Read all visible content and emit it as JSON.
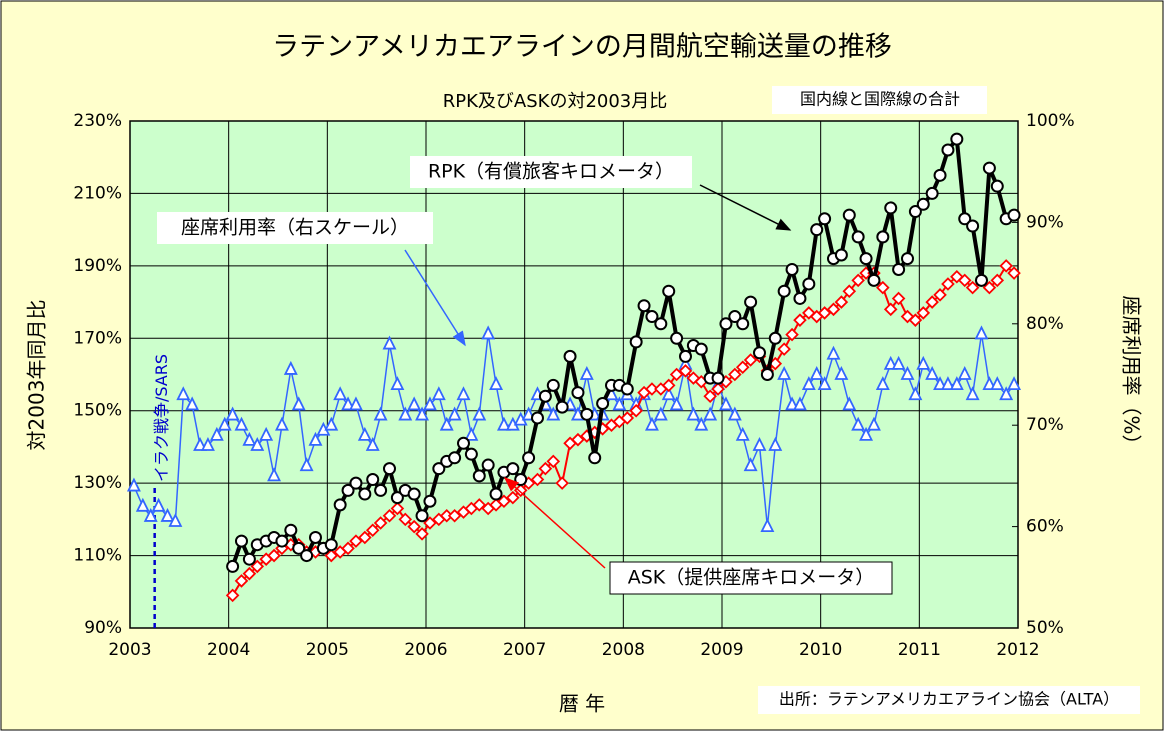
{
  "chart_data": {
    "type": "line",
    "title": "ラテンアメリカエアラインの月間航空輸送量の推移",
    "subtitle": "RPK及びASKの対2003月比",
    "note": "国内線と国際線の合計",
    "source": "出所：ラテンアメリカエアライン協会（ALTA）",
    "xlabel": "暦 年",
    "ylabel": "対2003年同月比",
    "y2label": "座席利用率（%）",
    "event": {
      "label": "イラク戦争/SARS",
      "x": 2003.25
    },
    "xlim": [
      2003,
      2012
    ],
    "xticks": [
      2003,
      2004,
      2005,
      2006,
      2007,
      2008,
      2009,
      2010,
      2011,
      2012
    ],
    "ylim": [
      90,
      230
    ],
    "yticks": [
      {
        "value": 90,
        "label": "90%"
      },
      {
        "value": 110,
        "label": "110%"
      },
      {
        "value": 130,
        "label": "130%"
      },
      {
        "value": 150,
        "label": "150%"
      },
      {
        "value": 170,
        "label": "170%"
      },
      {
        "value": 190,
        "label": "190%"
      },
      {
        "value": 210,
        "label": "210%"
      },
      {
        "value": 230,
        "label": "230%"
      }
    ],
    "y2lim": [
      50,
      100
    ],
    "y2ticks": [
      {
        "value": 50,
        "label": "50%"
      },
      {
        "value": 60,
        "label": "60%"
      },
      {
        "value": 70,
        "label": "70%"
      },
      {
        "value": 80,
        "label": "80%"
      },
      {
        "value": 90,
        "label": "90%"
      },
      {
        "value": 100,
        "label": "100%"
      }
    ],
    "grid": true,
    "x": [
      2003.04,
      2003.13,
      2003.21,
      2003.29,
      2003.38,
      2003.46,
      2003.54,
      2003.63,
      2003.71,
      2003.79,
      2003.88,
      2003.96,
      2004.04,
      2004.13,
      2004.21,
      2004.29,
      2004.38,
      2004.46,
      2004.54,
      2004.63,
      2004.71,
      2004.79,
      2004.88,
      2004.96,
      2005.04,
      2005.13,
      2005.21,
      2005.29,
      2005.38,
      2005.46,
      2005.54,
      2005.63,
      2005.71,
      2005.79,
      2005.88,
      2005.96,
      2006.04,
      2006.13,
      2006.21,
      2006.29,
      2006.38,
      2006.46,
      2006.54,
      2006.63,
      2006.71,
      2006.79,
      2006.88,
      2006.96,
      2007.04,
      2007.13,
      2007.21,
      2007.29,
      2007.38,
      2007.46,
      2007.54,
      2007.63,
      2007.71,
      2007.79,
      2007.88,
      2007.96,
      2008.04,
      2008.13,
      2008.21,
      2008.29,
      2008.38,
      2008.46,
      2008.54,
      2008.63,
      2008.71,
      2008.79,
      2008.88,
      2008.96,
      2009.04,
      2009.13,
      2009.21,
      2009.29,
      2009.38,
      2009.46,
      2009.54,
      2009.63,
      2009.71,
      2009.79,
      2009.88,
      2009.96,
      2010.04,
      2010.13,
      2010.21,
      2010.29,
      2010.38,
      2010.46,
      2010.54,
      2010.63,
      2010.71,
      2010.79,
      2010.88,
      2010.96,
      2011.04,
      2011.13,
      2011.21,
      2011.29,
      2011.38,
      2011.46,
      2011.54,
      2011.63,
      2011.71,
      2011.79,
      2011.88,
      2011.96
    ],
    "series": [
      {
        "name": "座席利用率（右スケール）",
        "color": "#3366ff",
        "marker": "triangle",
        "axis": "y2",
        "values": [
          64,
          62,
          61,
          62,
          61,
          60.5,
          73,
          72,
          68,
          68,
          69,
          70,
          71,
          70,
          68.5,
          68,
          69,
          65,
          70,
          75.5,
          72,
          66,
          68.5,
          69.5,
          70,
          73,
          72,
          72,
          69,
          68,
          71,
          78,
          74,
          71,
          72,
          71,
          72,
          73,
          70,
          71,
          73,
          69,
          71,
          79,
          74,
          70,
          70,
          70.5,
          71,
          73,
          72,
          71,
          72,
          72,
          71,
          75,
          71,
          71,
          73,
          72,
          73,
          72,
          73,
          70,
          71,
          73,
          72,
          76,
          71,
          70,
          71,
          74,
          72,
          71,
          69,
          66,
          68,
          60,
          68,
          75,
          72,
          72,
          74,
          75,
          74,
          77,
          75,
          72,
          70,
          69,
          70,
          74,
          76,
          76,
          75,
          73,
          76,
          75,
          74,
          74,
          74,
          75,
          73,
          79,
          74,
          74,
          73,
          74
        ]
      },
      {
        "name": "ASK（提供座席キロメータ）",
        "color": "#ff0000",
        "marker": "diamond",
        "values": [
          null,
          null,
          null,
          null,
          null,
          null,
          null,
          null,
          null,
          null,
          null,
          null,
          99,
          103,
          105,
          107,
          109,
          110,
          112,
          113,
          113,
          111,
          111,
          112,
          110,
          111,
          112,
          114,
          115,
          117,
          119,
          121,
          123,
          120,
          118,
          116,
          119,
          120,
          121,
          121,
          122,
          123,
          124,
          123,
          124,
          125,
          126,
          128,
          130,
          131,
          134,
          136,
          130,
          141,
          142,
          143,
          144,
          145,
          146,
          147,
          148,
          150,
          155,
          156,
          156,
          157,
          160,
          161,
          159,
          158,
          154,
          156,
          158,
          160,
          162,
          164,
          165,
          161,
          163,
          167,
          171,
          175,
          177,
          176,
          177,
          178,
          180,
          183,
          186,
          188,
          188,
          184,
          178,
          181,
          176,
          175,
          177,
          180,
          182,
          185,
          187,
          186,
          184,
          186,
          184,
          186,
          190,
          188
        ]
      },
      {
        "name": "RPK（有償旅客キロメータ）",
        "color": "#000000",
        "marker": "circle",
        "values": [
          null,
          null,
          null,
          null,
          null,
          null,
          null,
          null,
          null,
          null,
          null,
          null,
          107,
          114,
          109,
          113,
          114,
          115,
          114,
          117,
          112,
          110,
          115,
          112,
          113,
          124,
          128,
          130,
          127,
          131,
          128,
          134,
          126,
          128,
          127,
          121,
          125,
          134,
          136,
          137,
          141,
          138,
          132,
          135,
          127,
          133,
          134,
          131,
          137,
          148,
          154,
          157,
          151,
          165,
          155,
          149,
          137,
          152,
          157,
          157,
          156,
          169,
          179,
          176,
          174,
          183,
          170,
          165,
          168,
          167,
          159,
          159,
          174,
          176,
          174,
          180,
          166,
          160,
          170,
          183,
          189,
          181,
          185,
          200,
          203,
          192,
          193,
          204,
          198,
          192,
          186,
          198,
          206,
          189,
          192,
          205,
          207,
          210,
          215,
          222,
          225,
          203,
          201,
          186,
          217,
          212,
          203,
          204
        ]
      }
    ]
  }
}
